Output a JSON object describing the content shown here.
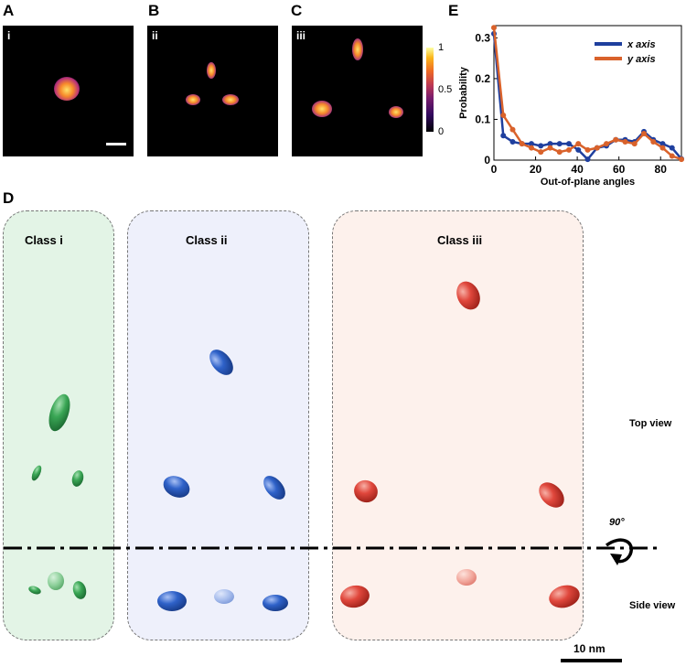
{
  "panels": {
    "a": {
      "letter": "A",
      "roman": "i"
    },
    "b": {
      "letter": "B",
      "roman": "ii"
    },
    "c": {
      "letter": "C",
      "roman": "iii"
    },
    "d": {
      "letter": "D"
    },
    "e": {
      "letter": "E"
    }
  },
  "colorbar": {
    "ticks": [
      "1",
      "0.5",
      "0"
    ]
  },
  "classes": {
    "i": {
      "title": "Class i",
      "color": "#3aa655",
      "bg": "#e3f4e6"
    },
    "ii": {
      "title": "Class ii",
      "color": "#2f62c9",
      "bg": "#eef0fb"
    },
    "iii": {
      "title": "Class iii",
      "color": "#e0473c",
      "bg": "#fdf1ec"
    }
  },
  "views": {
    "top": "Top view",
    "side": "Side view",
    "rotation": "90°"
  },
  "scale_bar": "10 nm",
  "chart_data": {
    "type": "line",
    "title": "",
    "xlabel": "Out-of-plane angles",
    "ylabel": "Probability",
    "xlim": [
      0,
      90
    ],
    "ylim": [
      0,
      0.33
    ],
    "xticks": [
      "0",
      "20",
      "40",
      "60",
      "80"
    ],
    "yticks": [
      "0",
      "0.1",
      "0.2",
      "0.3"
    ],
    "legend_position": "top-right",
    "series": [
      {
        "name": "x axis",
        "color": "#1f3f9e",
        "x": [
          0,
          4.5,
          9,
          13.5,
          18,
          22.5,
          27,
          31.5,
          36,
          40.5,
          45,
          49.5,
          54,
          58.5,
          63,
          67.5,
          72,
          76.5,
          81,
          85.5,
          90
        ],
        "values": [
          0.31,
          0.06,
          0.045,
          0.04,
          0.04,
          0.035,
          0.04,
          0.04,
          0.04,
          0.025,
          0.002,
          0.03,
          0.035,
          0.05,
          0.05,
          0.045,
          0.07,
          0.05,
          0.04,
          0.03,
          0.003
        ]
      },
      {
        "name": "y axis",
        "color": "#d9622b",
        "x": [
          0,
          4.5,
          9,
          13.5,
          18,
          22.5,
          27,
          31.5,
          36,
          40.5,
          45,
          49.5,
          54,
          58.5,
          63,
          67.5,
          72,
          76.5,
          81,
          85.5,
          90
        ],
        "values": [
          0.325,
          0.11,
          0.075,
          0.04,
          0.03,
          0.02,
          0.03,
          0.02,
          0.025,
          0.04,
          0.025,
          0.03,
          0.04,
          0.05,
          0.045,
          0.04,
          0.065,
          0.045,
          0.03,
          0.01,
          0.002
        ]
      }
    ]
  }
}
